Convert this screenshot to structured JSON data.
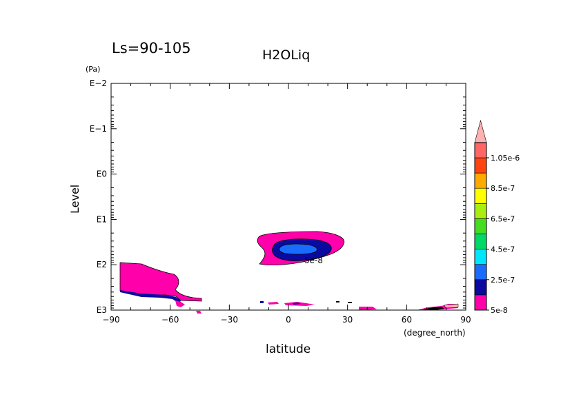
{
  "chart_data": {
    "type": "contour",
    "season_label": "Ls=90-105",
    "title": "H2OLiq",
    "xlabel": "latitude",
    "xunit": "(degree_north)",
    "ylabel": "Level",
    "yunit": "(Pa)",
    "x_scale": "linear",
    "y_scale": "log",
    "y_inverted": true,
    "xlim": [
      -90,
      90
    ],
    "ylim": [
      1000,
      0.01
    ],
    "x_ticks": [
      -90,
      -60,
      -30,
      0,
      30,
      60,
      90
    ],
    "x_tick_labels": [
      "−90",
      "−60",
      "−30",
      "0",
      "30",
      "60",
      "90"
    ],
    "y_ticks": [
      0.01,
      0.1,
      1,
      10,
      100,
      1000
    ],
    "y_tick_labels": [
      "E−2",
      "E−1",
      "E0",
      "E1",
      "E2",
      "E3"
    ],
    "contour_label": "5e-8",
    "colorbar": {
      "levels": [
        5e-08,
        1.5e-07,
        2.5e-07,
        3.5e-07,
        4.5e-07,
        5.5e-07,
        6.5e-07,
        7.5e-07,
        8.5e-07,
        9.5e-07,
        1.05e-06
      ],
      "colors": [
        "#ff00aa",
        "#0a0aa0",
        "#1a6cff",
        "#00e6ff",
        "#00d966",
        "#44dd22",
        "#aaee11",
        "#ffff00",
        "#ffaa00",
        "#ff4411",
        "#ff6666",
        "#ffb0b0"
      ],
      "tick_labels": [
        "5e-8",
        "2.5e-7",
        "4.5e-7",
        "6.5e-7",
        "8.5e-7",
        "1.05e-6"
      ],
      "tick_values": [
        5e-08,
        2.5e-07,
        4.5e-07,
        6.5e-07,
        8.5e-07,
        1.05e-06
      ]
    },
    "features": [
      {
        "name": "tropical-cloud-outer",
        "lat_range": [
          -15,
          28
        ],
        "p_range": [
          18,
          130
        ],
        "band": "5e-8 to 1.5e-7"
      },
      {
        "name": "tropical-cloud-middle",
        "lat_range": [
          -8,
          20
        ],
        "p_range": [
          28,
          85
        ],
        "band": "1.5e-7 to 2.5e-7"
      },
      {
        "name": "tropical-cloud-core",
        "lat_range": [
          -4,
          14
        ],
        "p_range": [
          35,
          60
        ],
        "band": "2.5e-7 to 3.5e-7"
      },
      {
        "name": "south-polar-cloud",
        "lat_range": [
          -90,
          -48
        ],
        "p_range": [
          90,
          1000
        ],
        "band": "5e-8 to 2.5e-7"
      },
      {
        "name": "north-polar-cloud",
        "lat_range": [
          62,
          87
        ],
        "p_range": [
          800,
          1000
        ],
        "band": "5e-8 to 1.05e-6"
      }
    ]
  }
}
